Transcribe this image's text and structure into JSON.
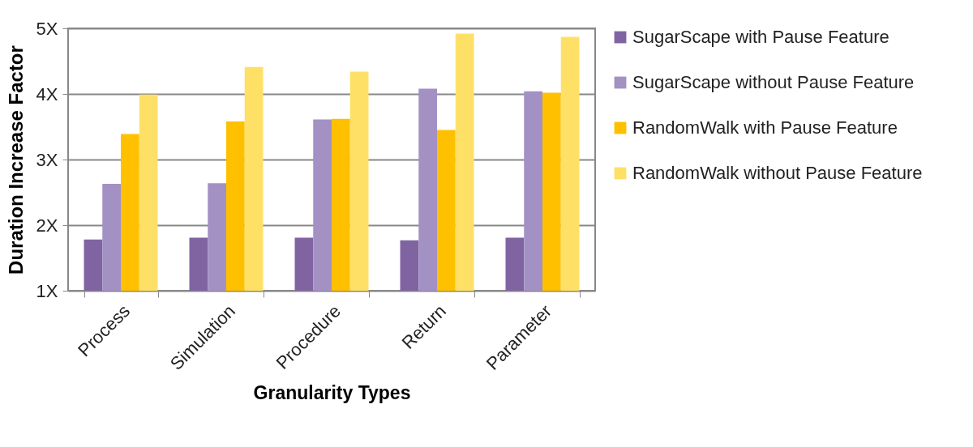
{
  "chart_data": {
    "type": "bar",
    "xlabel": "Granularity Types",
    "ylabel": "Duration Increase Factor",
    "categories": [
      "Process",
      "Simulation",
      "Procedure",
      "Return",
      "Parameter"
    ],
    "series": [
      {
        "name": "SugarScape with Pause Feature",
        "color": "#8064a2",
        "values": [
          1.78,
          1.81,
          1.81,
          1.77,
          1.81
        ]
      },
      {
        "name": "SugarScape without Pause Feature",
        "color": "#a391c4",
        "values": [
          2.63,
          2.64,
          3.61,
          4.08,
          4.04
        ]
      },
      {
        "name": "RandomWalk with Pause Feature",
        "color": "#ffc000",
        "values": [
          3.39,
          3.58,
          3.62,
          3.45,
          4.02
        ]
      },
      {
        "name": "RandomWalk without Pause Feature",
        "color": "#ffe066",
        "values": [
          3.99,
          4.41,
          4.34,
          4.92,
          4.87
        ]
      }
    ],
    "ylim": [
      1,
      5
    ],
    "yticks": [
      {
        "value": 1,
        "label": "1X"
      },
      {
        "value": 2,
        "label": "2X"
      },
      {
        "value": 3,
        "label": "3X"
      },
      {
        "value": 4,
        "label": "4X"
      },
      {
        "value": 5,
        "label": "5X"
      }
    ],
    "grid": "y",
    "legend": "right"
  }
}
